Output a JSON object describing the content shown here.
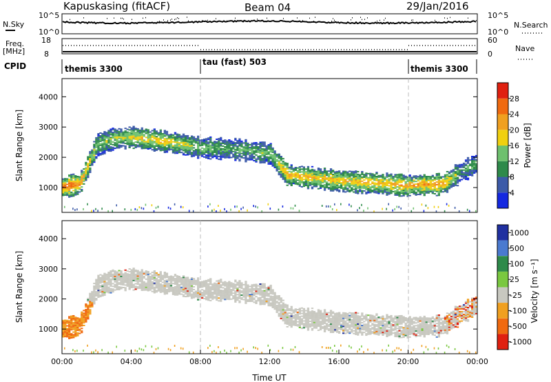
{
  "header": {
    "station": "Kapuskasing (fitACF)",
    "beam": "Beam 04",
    "date": "29/Jan/2016"
  },
  "strip_labels": {
    "nsky": "N.Sky",
    "nsky_top": "10^5",
    "nsky_bot": "10^0",
    "nsearch": "N.Search",
    "nsearch_top": "10^5",
    "nsearch_bot": "10^0",
    "freq_line1": "Freq.",
    "freq_line2": "[MHz]",
    "freq_top": "18",
    "freq_bot": "8",
    "nave": "Nave",
    "nave_top": "60",
    "nave_bot": "0",
    "cpid": "CPID"
  },
  "cpid_segments": [
    {
      "label": "themis 3300",
      "start": "00:00",
      "end": "08:00"
    },
    {
      "label": "tau (fast) 503",
      "start": "08:00",
      "end": "20:00"
    },
    {
      "label": "themis 3300",
      "start": "20:00",
      "end": "24:00"
    }
  ],
  "colors": {
    "power": [
      "#1428e0",
      "#3c5aa8",
      "#2e8a4a",
      "#6ec06e",
      "#f0d010",
      "#f0a020",
      "#f06a10",
      "#e02010"
    ],
    "velocity": [
      "#2030a0",
      "#4a7ad0",
      "#2e8a4a",
      "#7ac840",
      "#c8c8c0",
      "#f0a020",
      "#f06a10",
      "#e02010"
    ],
    "gray_scatter": "#c8c8c0"
  },
  "chart_data": [
    {
      "type": "heatmap",
      "name": "power",
      "ylabel": "Slant Range [km]",
      "xlabel": "",
      "x_ticks": [
        "00:00",
        "04:00",
        "08:00",
        "12:00",
        "16:00",
        "20:00",
        "00:00"
      ],
      "y_ticks": [
        1000,
        2000,
        3000,
        4000
      ],
      "xlim_hours": [
        0,
        24
      ],
      "ylim_km": [
        180,
        4600
      ],
      "colorbar": {
        "label": "Power [dB]",
        "ticks": [
          4,
          8,
          12,
          16,
          20,
          24,
          28
        ],
        "range": [
          0,
          32
        ]
      },
      "echo_band": {
        "time_hours": [
          0,
          1,
          2,
          3,
          4,
          6,
          8,
          10,
          12,
          13,
          16,
          20,
          22,
          23,
          24
        ],
        "center_km": [
          1000,
          1100,
          2400,
          2600,
          2650,
          2500,
          2300,
          2250,
          2100,
          1400,
          1200,
          1050,
          1100,
          1500,
          1800
        ],
        "strength_db": [
          28,
          24,
          14,
          16,
          18,
          20,
          14,
          12,
          14,
          22,
          20,
          22,
          24,
          10,
          14
        ]
      },
      "vertical_markers_hours": [
        8,
        20
      ]
    },
    {
      "type": "heatmap",
      "name": "velocity",
      "ylabel": "Slant Range [km]",
      "xlabel": "Time UT",
      "x_ticks": [
        "00:00",
        "04:00",
        "08:00",
        "12:00",
        "16:00",
        "20:00",
        "00:00"
      ],
      "y_ticks": [
        1000,
        2000,
        3000,
        4000
      ],
      "xlim_hours": [
        0,
        24
      ],
      "ylim_km": [
        180,
        4600
      ],
      "colorbar": {
        "label": "Velocity [m s⁻¹]",
        "ticks": [
          "1000",
          "500",
          "100",
          "25",
          "-25",
          "-100",
          "-500",
          "-1000"
        ]
      },
      "vertical_markers_hours": [
        8,
        20
      ]
    }
  ]
}
